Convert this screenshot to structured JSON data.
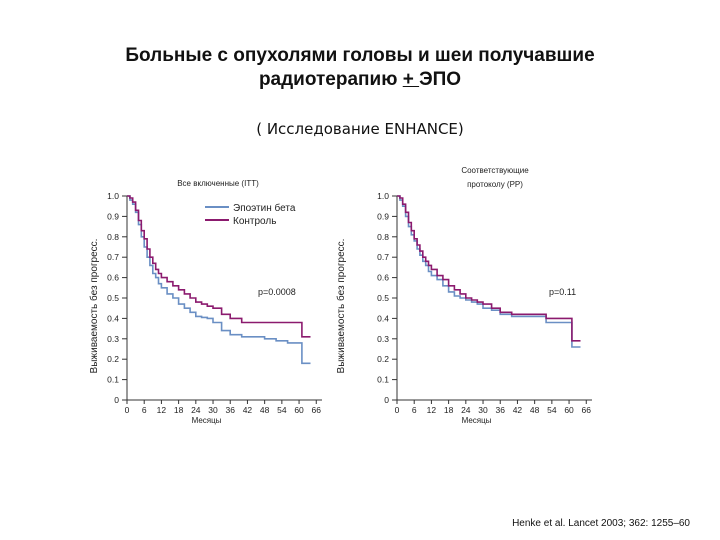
{
  "title_line1": "Больные с опухолями головы и шеи получавшие",
  "title_line2_main": "радиотерапию ",
  "title_line2_pm": "+ ",
  "title_line2_tail": "ЭПО",
  "subtitle": "( Исследование ENHANCE)",
  "citation": "Henke et al. Lancet 2003; 362: 1255–60",
  "colors": {
    "epoetin": "#6a8fc4",
    "control": "#8b1a6e",
    "axis": "#333333"
  },
  "chart_data": [
    {
      "type": "line",
      "title": "Все включенные (ITT)",
      "xlabel": "Месяцы",
      "ylabel": "Выживаемость без прогресс.",
      "x_ticks": [
        0,
        6,
        12,
        18,
        24,
        30,
        36,
        42,
        48,
        54,
        60,
        66
      ],
      "y_ticks": [
        "0",
        "0.1",
        "0.2",
        "0.3",
        "0.4",
        "0.5",
        "0.6",
        "0.7",
        "0.8",
        "0.9",
        "1.0"
      ],
      "xlim": [
        0,
        68
      ],
      "ylim": [
        0,
        1
      ],
      "annotation": "p=0.0008",
      "legend": [
        "Эпоэтин бета",
        "Контроль"
      ],
      "series": [
        {
          "name": "Эпоэтин бета",
          "color": "#6a8fc4",
          "x": [
            0,
            1,
            2,
            3,
            4,
            5,
            6,
            7,
            8,
            9,
            10,
            11,
            12,
            14,
            16,
            18,
            20,
            22,
            24,
            26,
            28,
            30,
            33,
            36,
            40,
            44,
            48,
            52,
            56,
            60,
            61,
            64
          ],
          "y": [
            1.0,
            0.98,
            0.96,
            0.92,
            0.86,
            0.8,
            0.75,
            0.7,
            0.66,
            0.62,
            0.6,
            0.57,
            0.55,
            0.52,
            0.5,
            0.47,
            0.45,
            0.43,
            0.41,
            0.405,
            0.4,
            0.38,
            0.34,
            0.32,
            0.31,
            0.31,
            0.3,
            0.29,
            0.28,
            0.28,
            0.18,
            0.18
          ]
        },
        {
          "name": "Контроль",
          "color": "#8b1a6e",
          "x": [
            0,
            1,
            2,
            3,
            4,
            5,
            6,
            7,
            8,
            9,
            10,
            11,
            12,
            14,
            16,
            18,
            20,
            22,
            24,
            26,
            28,
            30,
            33,
            36,
            40,
            44,
            48,
            52,
            56,
            60,
            61,
            64
          ],
          "y": [
            1.0,
            0.99,
            0.97,
            0.93,
            0.88,
            0.83,
            0.79,
            0.74,
            0.7,
            0.67,
            0.64,
            0.62,
            0.6,
            0.58,
            0.56,
            0.54,
            0.52,
            0.5,
            0.48,
            0.47,
            0.46,
            0.45,
            0.42,
            0.4,
            0.38,
            0.38,
            0.38,
            0.38,
            0.38,
            0.38,
            0.31,
            0.31
          ]
        }
      ]
    },
    {
      "type": "line",
      "title": "Соответствующие протоколу (PP)",
      "xlabel": "Месяцы",
      "ylabel": "Выживаемость без прогресс.",
      "x_ticks": [
        0,
        6,
        12,
        18,
        24,
        30,
        36,
        42,
        48,
        54,
        60,
        66
      ],
      "y_ticks": [
        "0",
        "0.1",
        "0.2",
        "0.3",
        "0.4",
        "0.5",
        "0.6",
        "0.7",
        "0.8",
        "0.9",
        "1.0"
      ],
      "xlim": [
        0,
        68
      ],
      "ylim": [
        0,
        1
      ],
      "annotation": "p=0.11",
      "series": [
        {
          "name": "Эпоэтин бета",
          "color": "#6a8fc4",
          "x": [
            0,
            1,
            2,
            3,
            4,
            5,
            6,
            7,
            8,
            9,
            10,
            11,
            12,
            14,
            16,
            18,
            20,
            22,
            24,
            26,
            28,
            30,
            33,
            36,
            40,
            44,
            48,
            52,
            56,
            60,
            61,
            64
          ],
          "y": [
            1.0,
            0.98,
            0.95,
            0.9,
            0.85,
            0.81,
            0.78,
            0.74,
            0.71,
            0.68,
            0.66,
            0.63,
            0.61,
            0.59,
            0.56,
            0.53,
            0.51,
            0.5,
            0.49,
            0.48,
            0.47,
            0.45,
            0.44,
            0.42,
            0.41,
            0.41,
            0.41,
            0.38,
            0.38,
            0.38,
            0.26,
            0.26
          ]
        },
        {
          "name": "Контроль",
          "color": "#8b1a6e",
          "x": [
            0,
            1,
            2,
            3,
            4,
            5,
            6,
            7,
            8,
            9,
            10,
            11,
            12,
            14,
            16,
            18,
            20,
            22,
            24,
            26,
            28,
            30,
            33,
            36,
            40,
            44,
            48,
            52,
            56,
            60,
            61,
            64
          ],
          "y": [
            1.0,
            0.99,
            0.96,
            0.92,
            0.87,
            0.83,
            0.79,
            0.76,
            0.73,
            0.7,
            0.68,
            0.66,
            0.64,
            0.61,
            0.59,
            0.56,
            0.54,
            0.52,
            0.5,
            0.49,
            0.48,
            0.47,
            0.45,
            0.43,
            0.42,
            0.42,
            0.42,
            0.4,
            0.4,
            0.4,
            0.29,
            0.29
          ]
        }
      ]
    }
  ]
}
